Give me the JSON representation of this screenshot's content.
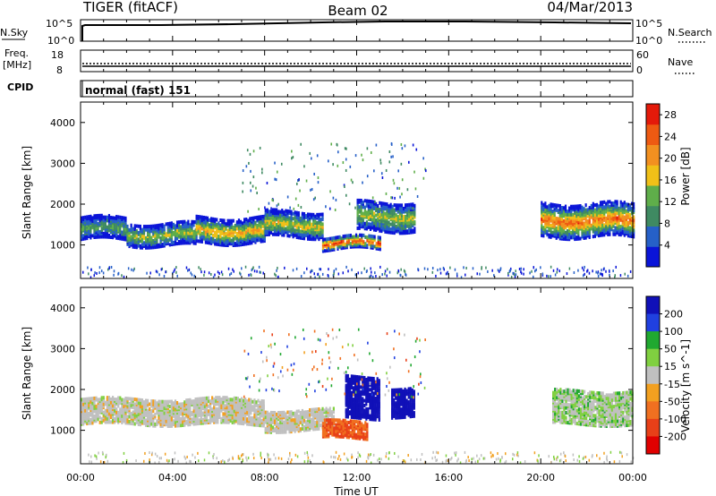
{
  "header": {
    "station": "TIGER (fitACF)",
    "beam": "Beam 02",
    "date": "04/Mar/2013"
  },
  "sky_panel": {
    "left_label": "N.Sky",
    "left_ticks": [
      "10^5",
      "10^0"
    ],
    "right_ticks": [
      "10^5",
      "10^0"
    ],
    "right_label": "N.Search"
  },
  "freq_panel": {
    "left_label_1": "Freq.",
    "left_label_2": "[MHz]",
    "left_ticks": [
      "18",
      "8"
    ],
    "right_ticks": [
      "60",
      "0"
    ],
    "right_label": "Nave"
  },
  "cpid_panel": {
    "left_label": "CPID",
    "mode_text": "normal (fast) 151"
  },
  "colors": {
    "power": [
      "#0a14d8",
      "#2660c8",
      "#3f8a62",
      "#5fae4a",
      "#f0c018",
      "#f29020",
      "#ee5a12",
      "#e41a0a"
    ],
    "velocity": [
      "#1010b8",
      "#2040e0",
      "#20a830",
      "#80d040",
      "#c0c0c0",
      "#f2a020",
      "#f07020",
      "#e84018",
      "#e00000"
    ]
  },
  "chart_data": [
    {
      "type": "heatmap",
      "title": "",
      "xlabel": "",
      "ylabel": "Slant Range [km]",
      "x_range": [
        "00:00",
        "24:00"
      ],
      "x_ticks": [
        "00:00",
        "04:00",
        "08:00",
        "12:00",
        "16:00",
        "20:00",
        "00:00"
      ],
      "ylim": [
        180,
        4500
      ],
      "y_ticks": [
        "1000",
        "2000",
        "3000",
        "4000"
      ],
      "grid": false,
      "colorbar": {
        "label": "Power [dB]",
        "ticks": [
          "4",
          "8",
          "12",
          "16",
          "20",
          "24",
          "28"
        ],
        "range": [
          0,
          30
        ]
      },
      "bands": [
        {
          "start": "00:00",
          "end": "02:00",
          "center_km": 1400,
          "width_km": 260,
          "peak_db": 12
        },
        {
          "start": "02:00",
          "end": "05:00",
          "center_km": 1250,
          "width_km": 260,
          "peak_db": 16
        },
        {
          "start": "05:00",
          "end": "08:00",
          "center_km": 1350,
          "width_km": 300,
          "peak_db": 20
        },
        {
          "start": "08:00",
          "end": "10:30",
          "center_km": 1500,
          "width_km": 300,
          "peak_db": 18
        },
        {
          "start": "10:30",
          "end": "13:00",
          "center_km": 1050,
          "width_km": 150,
          "peak_db": 28
        },
        {
          "start": "12:00",
          "end": "14:30",
          "center_km": 1700,
          "width_km": 350,
          "peak_db": 16
        },
        {
          "start": "20:00",
          "end": "24:00",
          "center_km": 1600,
          "width_km": 400,
          "peak_db": 24
        }
      ]
    },
    {
      "type": "heatmap",
      "title": "",
      "xlabel": "Time UT",
      "ylabel": "Slant Range [km]",
      "x_range": [
        "00:00",
        "24:00"
      ],
      "x_ticks": [
        "00:00",
        "04:00",
        "08:00",
        "12:00",
        "16:00",
        "20:00",
        "00:00"
      ],
      "ylim": [
        180,
        4500
      ],
      "y_ticks": [
        "1000",
        "2000",
        "3000",
        "4000"
      ],
      "grid": false,
      "colorbar": {
        "label": "Velocity [m s^-1]",
        "ticks": [
          "200",
          "100",
          "50",
          "15",
          "-15",
          "-50",
          "-100",
          "-200"
        ]
      },
      "bands": [
        {
          "start": "00:00",
          "end": "08:00",
          "center_km": 1450,
          "width_km": 300,
          "velocity": 0
        },
        {
          "start": "08:00",
          "end": "11:00",
          "center_km": 1250,
          "width_km": 250,
          "velocity": 0
        },
        {
          "start": "11:30",
          "end": "13:00",
          "center_km": 1800,
          "width_km": 500,
          "velocity": 200
        },
        {
          "start": "13:30",
          "end": "14:30",
          "center_km": 1700,
          "width_km": 350,
          "velocity": 200
        },
        {
          "start": "10:30",
          "end": "12:30",
          "center_km": 1000,
          "width_km": 200,
          "velocity": -100
        },
        {
          "start": "20:30",
          "end": "24:00",
          "center_km": 1550,
          "width_km": 400,
          "velocity": 15
        }
      ]
    }
  ]
}
